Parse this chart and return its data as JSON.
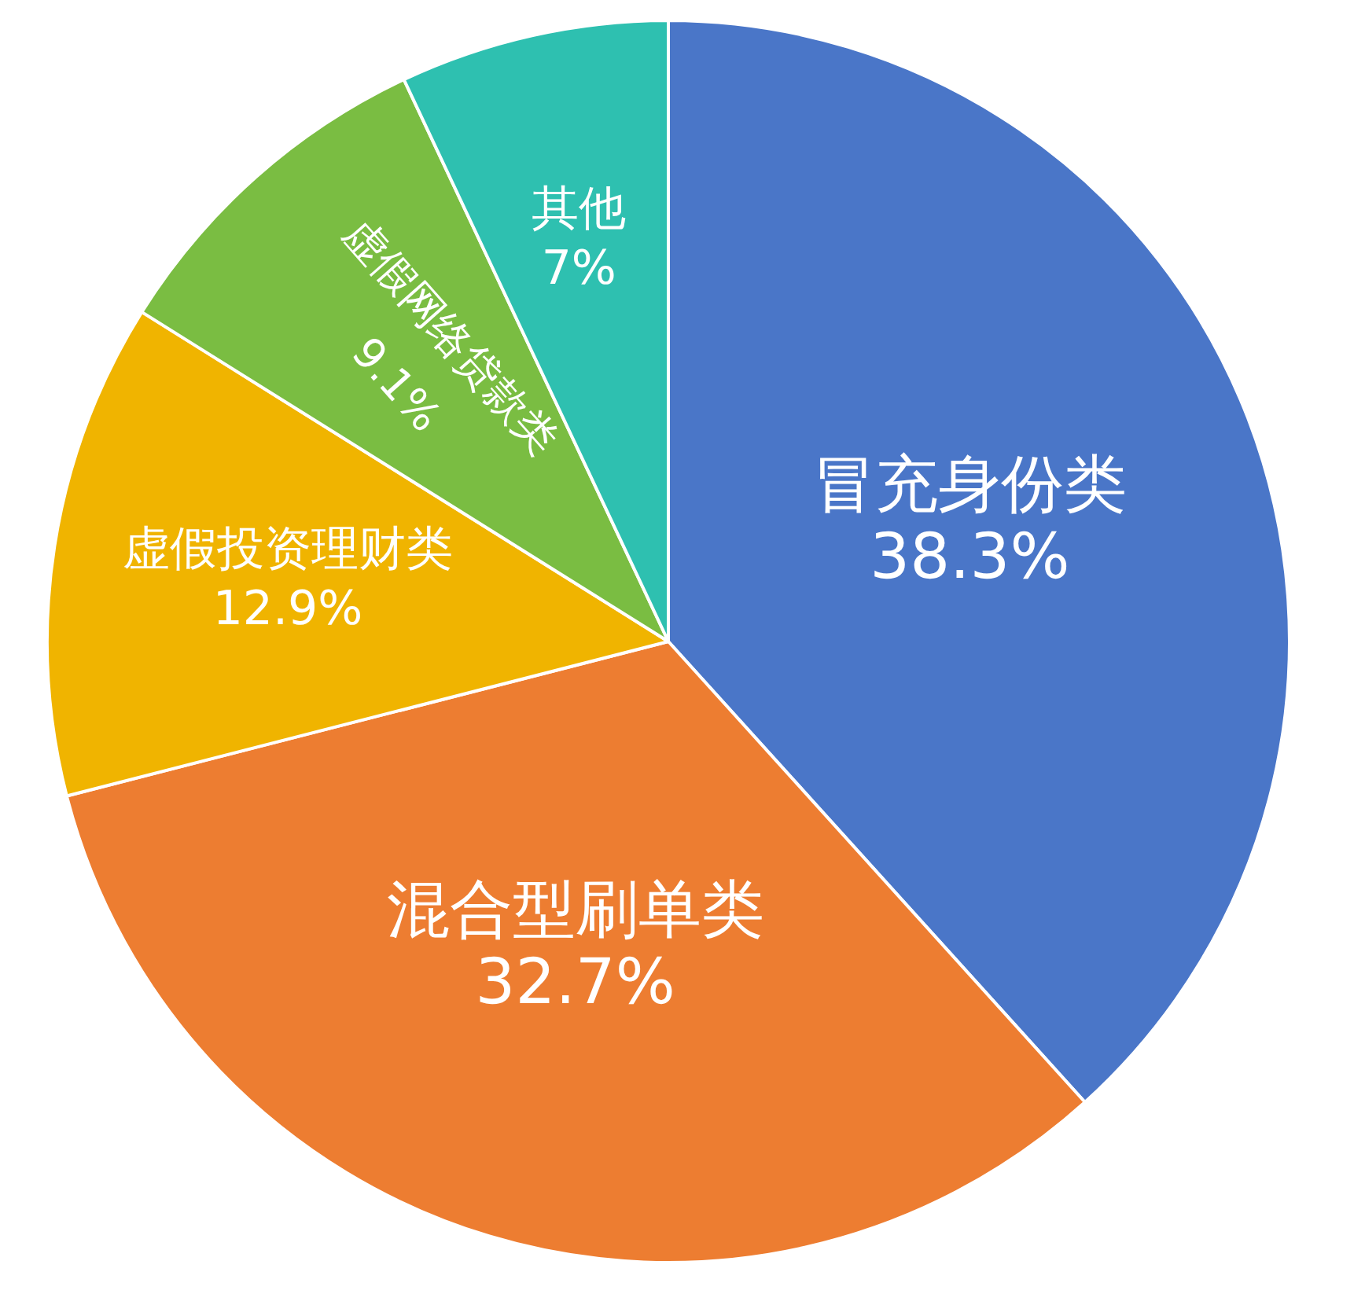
{
  "chart_data": {
    "type": "pie",
    "categories": [
      "冒充身份类",
      "混合型刷单类",
      "虚假投资理财类",
      "虚假网络贷款类",
      "其他"
    ],
    "values": [
      38.3,
      32.7,
      12.9,
      9.1,
      7
    ],
    "value_labels": [
      "38.3%",
      "32.7%",
      "12.9%",
      "9.1%",
      "7%"
    ],
    "colors": [
      "#4a76c8",
      "#ed7d31",
      "#f0b400",
      "#7abd42",
      "#2ec0b0"
    ],
    "legend": false
  }
}
